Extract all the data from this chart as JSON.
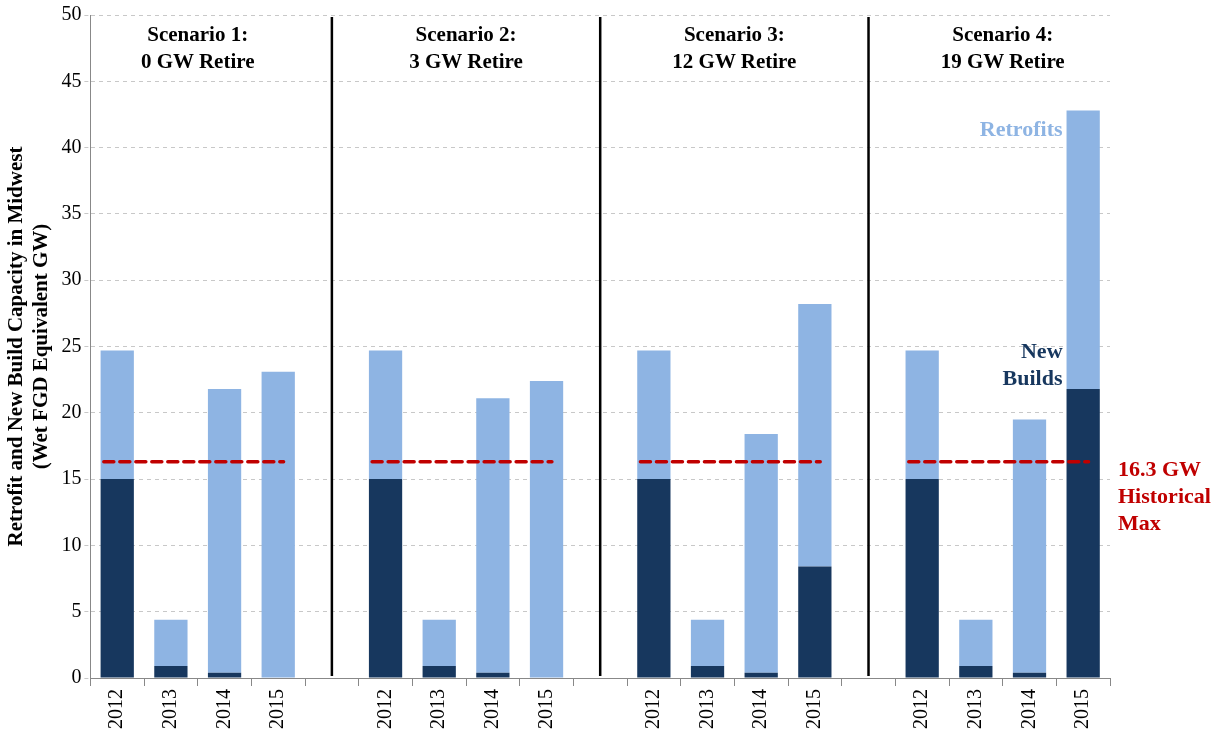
{
  "chart_data": {
    "type": "bar",
    "stacked": true,
    "ylabel": "Retrofit and New Build Capacity in Midwest\n(Wet FGD Equivalent GW)",
    "categories": [
      "2012",
      "2013",
      "2014",
      "2015",
      null,
      "2012",
      "2013",
      "2014",
      "2015",
      null,
      "2012",
      "2013",
      "2014",
      "2015",
      null,
      "2012",
      "2013",
      "2014",
      "2015"
    ],
    "series": [
      {
        "name": "New\nBuilds",
        "color": "#17375e",
        "values": [
          15,
          0.9,
          0.4,
          0,
          null,
          15,
          0.9,
          0.4,
          0,
          null,
          15,
          0.9,
          0.4,
          8.4,
          null,
          15,
          0.9,
          0.4,
          21.8
        ]
      },
      {
        "name": "Retrofits",
        "color": "#8eb4e3",
        "values": [
          9.7,
          3.5,
          21.4,
          23.1,
          null,
          9.7,
          3.5,
          20.7,
          22.4,
          null,
          9.7,
          3.5,
          18,
          19.8,
          null,
          9.7,
          3.5,
          19.1,
          21
        ]
      }
    ],
    "ylim": [
      0,
      50
    ],
    "yticks": [
      0,
      5,
      10,
      15,
      20,
      25,
      30,
      35,
      40,
      45,
      50
    ],
    "grid": "y",
    "legend": false,
    "ref_lines": [
      {
        "axis": "y",
        "value": 16.3,
        "label": "16.3 GW\nHistorical\nMax",
        "color": "#c00000",
        "line_style": "dashed"
      }
    ],
    "annotations": [
      "Scenario 1:\n0 GW Retire",
      "Scenario 2:\n3 GW Retire",
      "Scenario 3:\n12 GW Retire",
      "Scenario 4:\n19 GW Retire"
    ]
  }
}
